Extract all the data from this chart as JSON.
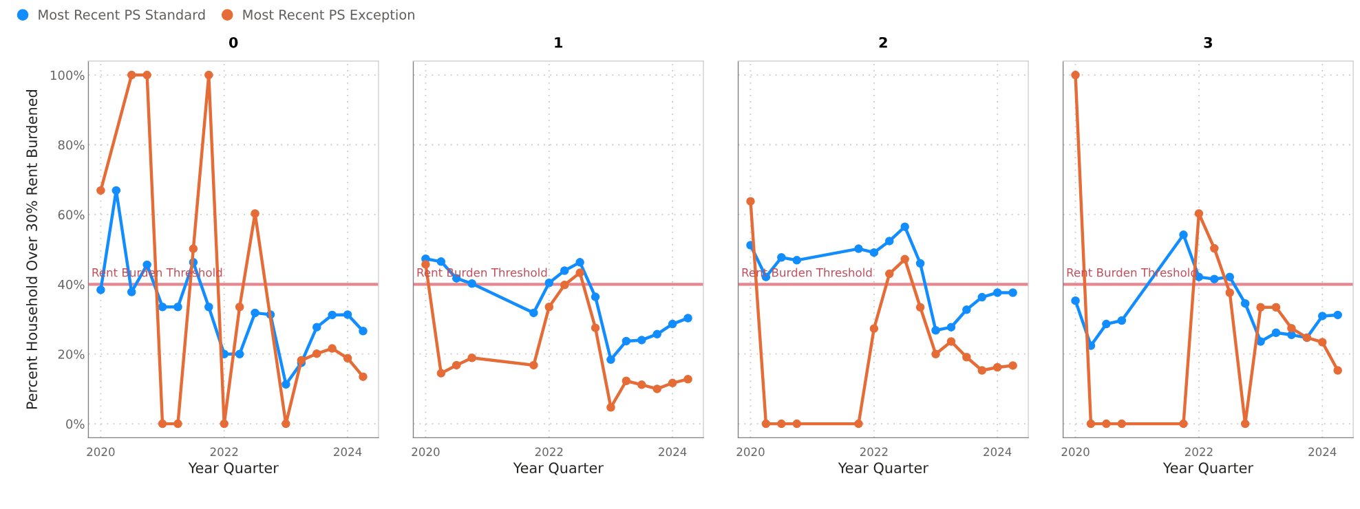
{
  "chart_data": [
    {
      "type": "line",
      "title": "0",
      "xlabel": "Year Quarter",
      "ylabel": "Percent Household Over 30% Rent Burdened",
      "xlim": [
        2019.8,
        2024.5
      ],
      "xticks": [
        2020,
        2022,
        2024
      ],
      "ylim": [
        -4,
        104
      ],
      "yticks": [
        {
          "value": 0,
          "label": "0%"
        },
        {
          "value": 20,
          "label": "20%"
        },
        {
          "value": 40,
          "label": "40%"
        },
        {
          "value": 60,
          "label": "60%"
        },
        {
          "value": 80,
          "label": "80%"
        },
        {
          "value": 100,
          "label": "100%"
        }
      ],
      "grid": true,
      "legend": "top left",
      "marker": "circle",
      "line_style": "solid",
      "ref_lines": [
        {
          "axis": "y",
          "value": 40,
          "label": "Rent Burden Threshold",
          "color": "#e8868f"
        }
      ],
      "series": [
        {
          "name": "Most Recent PS Standard",
          "color": "#118dff",
          "x": [
            2020,
            2020.25,
            2020.5,
            2020.75,
            2021,
            2021.25,
            2021.5,
            2021.75,
            2022,
            2022.25,
            2022.5,
            2022.75,
            2023,
            2023.25,
            2023.5,
            2023.75,
            2024,
            2024.25
          ],
          "values": [
            38.4,
            66.9,
            37.8,
            45.6,
            33.5,
            33.5,
            46.3,
            33.5,
            20,
            20,
            31.8,
            31.3,
            11.3,
            17.5,
            27.7,
            31.2,
            31.3,
            26.6
          ]
        },
        {
          "name": "Most Recent PS Exception",
          "color": "#e66c37",
          "x": [
            2020,
            2020.5,
            2020.75,
            2021,
            2021.25,
            2021.5,
            2021.75,
            2022,
            2022.25,
            2022.5,
            2023,
            2023.25,
            2023.5,
            2023.75,
            2024,
            2024.25
          ],
          "values": [
            66.9,
            100,
            100,
            0,
            0,
            50.2,
            100,
            0,
            33.5,
            60.3,
            0,
            18.2,
            20.1,
            21.6,
            18.8,
            13.5
          ]
        }
      ]
    },
    {
      "type": "line",
      "title": "1",
      "xlabel": "Year Quarter",
      "xlim": [
        2019.8,
        2024.5
      ],
      "xticks": [
        2020,
        2022,
        2024
      ],
      "ylim": [
        -4,
        104
      ],
      "yticks": [
        0,
        20,
        40,
        60,
        80,
        100
      ],
      "tick_labels": "x",
      "grid": true,
      "marker": "circle",
      "line_style": "solid",
      "ref_lines": [
        {
          "axis": "y",
          "value": 40,
          "label": "Rent Burden Threshold",
          "color": "#e8868f"
        }
      ],
      "series": [
        {
          "color": "#118dff",
          "x": [
            2020,
            2020.25,
            2020.5,
            2020.75,
            2021.75,
            2022,
            2022.25,
            2022.5,
            2022.75,
            2023,
            2023.25,
            2023.5,
            2023.75,
            2024,
            2024.25
          ],
          "values": [
            47.3,
            46.5,
            41.7,
            40.2,
            31.8,
            40.4,
            43.9,
            46.3,
            36.4,
            18.4,
            23.7,
            24.0,
            25.7,
            28.6,
            30.3
          ]
        },
        {
          "color": "#e66c37",
          "x": [
            2020,
            2020.25,
            2020.5,
            2020.75,
            2021.75,
            2022,
            2022.25,
            2022.5,
            2022.75,
            2023,
            2023.25,
            2023.5,
            2023.75,
            2024,
            2024.25
          ],
          "values": [
            45.7,
            14.5,
            16.8,
            18.9,
            16.8,
            33.5,
            39.8,
            43.3,
            27.5,
            4.7,
            12.3,
            11.2,
            10.0,
            11.7,
            12.8
          ]
        }
      ]
    },
    {
      "type": "line",
      "title": "2",
      "xlabel": "Year Quarter",
      "xlim": [
        2019.8,
        2024.5
      ],
      "xticks": [
        2020,
        2022,
        2024
      ],
      "ylim": [
        -4,
        104
      ],
      "yticks": [
        0,
        20,
        40,
        60,
        80,
        100
      ],
      "tick_labels": "x",
      "grid": true,
      "marker": "circle",
      "line_style": "solid",
      "ref_lines": [
        {
          "axis": "y",
          "value": 40,
          "label": "Rent Burden Threshold",
          "color": "#e8868f"
        }
      ],
      "series": [
        {
          "color": "#118dff",
          "x": [
            2020,
            2020.25,
            2020.5,
            2020.75,
            2021.75,
            2022,
            2022.25,
            2022.5,
            2022.75,
            2023,
            2023.25,
            2023.5,
            2023.75,
            2024,
            2024.25
          ],
          "values": [
            51.2,
            42.1,
            47.7,
            46.9,
            50.2,
            49.1,
            52.4,
            56.5,
            46.0,
            26.8,
            27.7,
            32.7,
            36.3,
            37.6,
            37.6
          ]
        },
        {
          "color": "#e66c37",
          "x": [
            2020,
            2020.25,
            2020.5,
            2020.75,
            2021.75,
            2022,
            2022.25,
            2022.5,
            2022.75,
            2023,
            2023.25,
            2023.5,
            2023.75,
            2024,
            2024.25
          ],
          "values": [
            63.8,
            0,
            0,
            0,
            0,
            27.3,
            43.0,
            47.2,
            33.4,
            20.0,
            23.6,
            19.1,
            15.3,
            16.2,
            16.7
          ]
        }
      ]
    },
    {
      "type": "line",
      "title": "3",
      "xlabel": "Year Quarter",
      "xlim": [
        2019.8,
        2024.5
      ],
      "xticks": [
        2020,
        2022,
        2024
      ],
      "ylim": [
        -4,
        104
      ],
      "yticks": [
        0,
        20,
        40,
        60,
        80,
        100
      ],
      "tick_labels": "x",
      "grid": true,
      "marker": "circle",
      "line_style": "solid",
      "ref_lines": [
        {
          "axis": "y",
          "value": 40,
          "label": "Rent Burden Threshold",
          "color": "#e8868f"
        }
      ],
      "series": [
        {
          "color": "#118dff",
          "x": [
            2020,
            2020.25,
            2020.5,
            2020.75,
            2021.75,
            2022,
            2022.25,
            2022.5,
            2022.75,
            2023,
            2023.25,
            2023.5,
            2023.75,
            2024,
            2024.25
          ],
          "values": [
            35.3,
            22.4,
            28.6,
            29.6,
            54.2,
            42.1,
            41.5,
            42.1,
            34.5,
            23.6,
            26.1,
            25.5,
            24.7,
            30.9,
            31.2
          ]
        },
        {
          "color": "#e66c37",
          "x": [
            2020,
            2020.25,
            2020.5,
            2020.75,
            2021.75,
            2022,
            2022.25,
            2022.5,
            2022.75,
            2023,
            2023.25,
            2023.5,
            2023.75,
            2024,
            2024.25
          ],
          "values": [
            100,
            0,
            0,
            0,
            0,
            60.3,
            50.3,
            37.6,
            0,
            33.4,
            33.4,
            27.4,
            24.7,
            23.4,
            15.3
          ]
        }
      ]
    }
  ]
}
